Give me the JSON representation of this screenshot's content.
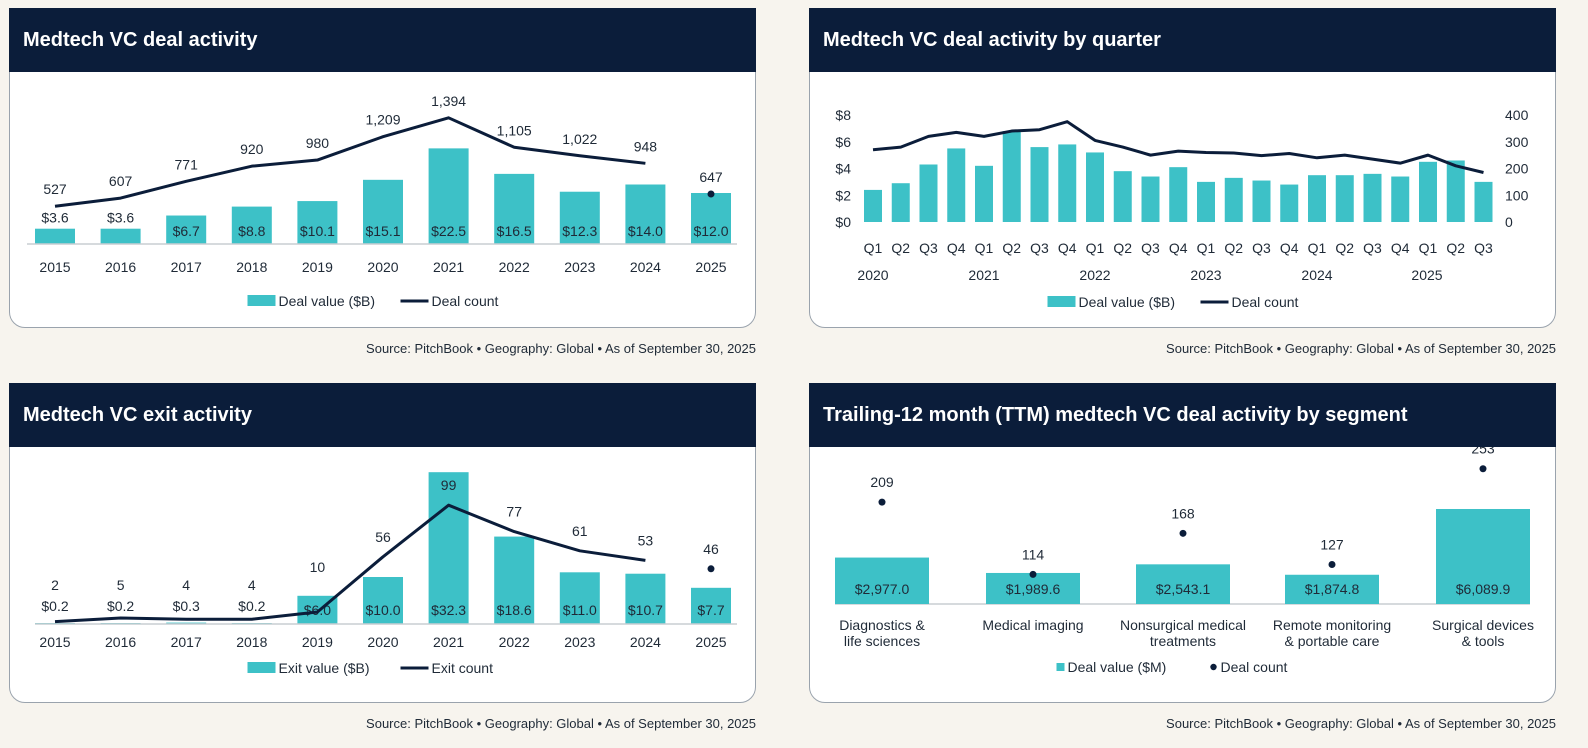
{
  "colors": {
    "bar": "#3dc1c7",
    "line": "#0b1d3a",
    "header": "#0b1d3a",
    "axis": "#c9cdd2"
  },
  "panels": {
    "p1": {
      "title": "Medtech VC deal activity",
      "source": "Source: PitchBook  •  Geography: Global  •  As of September 30, 2025"
    },
    "p2": {
      "title": "Medtech VC deal activity by quarter",
      "source": "Source: PitchBook  •  Geography: Global  •  As of September 30, 2025"
    },
    "p3": {
      "title": "Medtech VC exit activity",
      "source": "Source: PitchBook  •  Geography: Global  •  As of September 30, 2025"
    },
    "p4": {
      "title": "Trailing-12 month (TTM) medtech VC deal activity by segment",
      "source": "Source: PitchBook  •  Geography: Global  •  As of September 30, 2025"
    }
  },
  "chart_data": [
    {
      "type": "bar",
      "title": "Medtech VC deal activity",
      "categories": [
        "2015",
        "2016",
        "2017",
        "2018",
        "2019",
        "2020",
        "2021",
        "2022",
        "2023",
        "2024",
        "2025"
      ],
      "series": [
        {
          "name": "Deal value ($B)",
          "type": "bar",
          "values": [
            3.6,
            3.6,
            6.7,
            8.8,
            10.1,
            15.1,
            22.5,
            16.5,
            12.3,
            14.0,
            12.0
          ],
          "labels": [
            "$3.6",
            "$3.6",
            "$6.7",
            "$8.8",
            "$10.1",
            "$15.1",
            "$22.5",
            "$16.5",
            "$12.3",
            "$14.0",
            "$12.0"
          ]
        },
        {
          "name": "Deal count",
          "type": "line",
          "values": [
            527,
            607,
            771,
            920,
            980,
            1209,
            1394,
            1105,
            1022,
            948,
            647
          ],
          "labels": [
            "527",
            "607",
            "771",
            "920",
            "980",
            "1,209",
            "1,394",
            "1,105",
            "1,022",
            "948",
            "647"
          ],
          "last_as_point": true
        }
      ]
    },
    {
      "type": "bar",
      "title": "Medtech VC deal activity by quarter",
      "quarters": [
        "Q1",
        "Q2",
        "Q3",
        "Q4",
        "Q1",
        "Q2",
        "Q3",
        "Q4",
        "Q1",
        "Q2",
        "Q3",
        "Q4",
        "Q1",
        "Q2",
        "Q3",
        "Q4",
        "Q1",
        "Q2",
        "Q3",
        "Q4",
        "Q1",
        "Q2",
        "Q3"
      ],
      "years": [
        "2020",
        "2021",
        "2022",
        "2023",
        "2024",
        "2025"
      ],
      "y_left_ticks": [
        "$0",
        "$2",
        "$4",
        "$6",
        "$8"
      ],
      "y_right_ticks": [
        "0",
        "100",
        "200",
        "300",
        "400"
      ],
      "ylim_left": [
        0,
        8
      ],
      "ylim_right": [
        0,
        400
      ],
      "series": [
        {
          "name": "Deal value ($B)",
          "type": "bar",
          "axis": "left",
          "values": [
            2.4,
            2.9,
            4.3,
            5.5,
            4.2,
            6.8,
            5.6,
            5.8,
            5.2,
            3.8,
            3.4,
            4.1,
            3.0,
            3.3,
            3.1,
            2.8,
            3.5,
            3.5,
            3.6,
            3.4,
            4.5,
            4.6,
            3.0
          ]
        },
        {
          "name": "Deal count",
          "type": "line",
          "axis": "right",
          "values": [
            270,
            280,
            320,
            335,
            320,
            340,
            345,
            375,
            305,
            280,
            250,
            265,
            260,
            258,
            248,
            256,
            240,
            250,
            235,
            220,
            250,
            210,
            185
          ]
        }
      ]
    },
    {
      "type": "bar",
      "title": "Medtech VC exit activity",
      "categories": [
        "2015",
        "2016",
        "2017",
        "2018",
        "2019",
        "2020",
        "2021",
        "2022",
        "2023",
        "2024",
        "2025"
      ],
      "series": [
        {
          "name": "Exit value ($B)",
          "type": "bar",
          "values": [
            0.2,
            0.2,
            0.3,
            0.2,
            6.0,
            10.0,
            32.3,
            18.6,
            11.0,
            10.7,
            7.7
          ],
          "labels": [
            "$0.2",
            "$0.2",
            "$0.3",
            "$0.2",
            "$6.0",
            "$10.0",
            "$32.3",
            "$18.6",
            "$11.0",
            "$10.7",
            "$7.7"
          ]
        },
        {
          "name": "Exit count",
          "type": "line",
          "values": [
            2,
            5,
            4,
            4,
            10,
            56,
            99,
            77,
            61,
            53,
            46
          ],
          "labels": [
            "2",
            "5",
            "4",
            "4",
            "10",
            "56",
            "99",
            "77",
            "61",
            "53",
            "46"
          ],
          "last_as_point": true
        }
      ]
    },
    {
      "type": "bar",
      "title": "Trailing-12 month (TTM) medtech VC deal activity by segment",
      "categories": [
        [
          "Diagnostics &",
          "life sciences"
        ],
        [
          "Medical imaging"
        ],
        [
          "Nonsurgical medical",
          "treatments"
        ],
        [
          "Remote monitoring",
          "& portable care"
        ],
        [
          "Surgical devices",
          "& tools"
        ]
      ],
      "series": [
        {
          "name": "Deal value ($M)",
          "type": "bar",
          "values": [
            2977.0,
            1989.6,
            2543.1,
            1874.8,
            6089.9
          ],
          "labels": [
            "$2,977.0",
            "$1,989.6",
            "$2,543.1",
            "$1,874.8",
            "$6,089.9"
          ]
        },
        {
          "name": "Deal count",
          "type": "scatter",
          "values": [
            209,
            114,
            168,
            127,
            253
          ],
          "labels": [
            "209",
            "114",
            "168",
            "127",
            "253"
          ]
        }
      ]
    }
  ]
}
